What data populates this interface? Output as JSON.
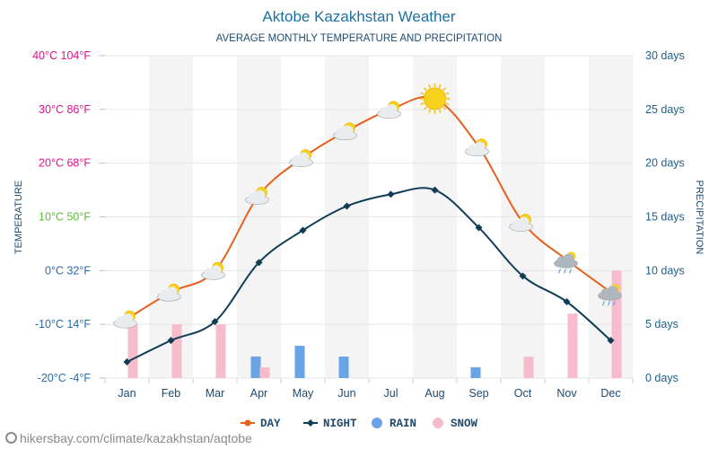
{
  "chart_data": {
    "type": "line+bar",
    "title": "Aktobe Kazakhstan Weather",
    "subtitle": "AVERAGE MONTHLY TEMPERATURE AND PRECIPITATION",
    "ylabel_left": "TEMPERATURE",
    "ylabel_right": "PRECIPITATION",
    "categories": [
      "Jan",
      "Feb",
      "Mar",
      "Apr",
      "May",
      "Jun",
      "Jul",
      "Aug",
      "Sep",
      "Oct",
      "Nov",
      "Dec"
    ],
    "temp_range_c": [
      -20,
      40
    ],
    "left_ticks": [
      {
        "c": 40,
        "label": "40°C 104°F",
        "color": "#e0148c"
      },
      {
        "c": 30,
        "label": "30°C 86°F",
        "color": "#e0148c"
      },
      {
        "c": 20,
        "label": "20°C 68°F",
        "color": "#e0148c"
      },
      {
        "c": 10,
        "label": "10°C 50°F",
        "color": "#5fb832"
      },
      {
        "c": 0,
        "label": "0°C 32°F",
        "color": "#2a6aa8"
      },
      {
        "c": -10,
        "label": "-10°C 14°F",
        "color": "#2a6aa8"
      },
      {
        "c": -20,
        "label": "-20°C -4°F",
        "color": "#2a6aa8"
      }
    ],
    "precip_range_days": [
      0,
      30
    ],
    "right_ticks": [
      {
        "v": 30,
        "label": "30 days"
      },
      {
        "v": 25,
        "label": "25 days"
      },
      {
        "v": 20,
        "label": "20 days"
      },
      {
        "v": 15,
        "label": "15 days"
      },
      {
        "v": 10,
        "label": "10 days"
      },
      {
        "v": 5,
        "label": "5 days"
      },
      {
        "v": 0,
        "label": "0 days"
      }
    ],
    "series": [
      {
        "name": "DAY",
        "color": "#e8601c",
        "values": [
          -9,
          -4,
          0,
          14,
          21,
          26,
          30,
          32,
          23,
          9,
          2,
          -4
        ]
      },
      {
        "name": "NIGHT",
        "color": "#0f3d56",
        "values": [
          -17,
          -13,
          -9.5,
          1.5,
          7.5,
          12,
          14.2,
          15,
          8,
          -1,
          -5.8,
          -13
        ]
      }
    ],
    "precip_series": [
      {
        "name": "RAIN",
        "color": "#6aa3e6",
        "values": [
          0,
          0,
          0,
          2,
          3,
          2,
          0,
          0,
          1,
          0,
          0,
          0
        ]
      },
      {
        "name": "SNOW",
        "color": "#f7bccb",
        "values": [
          5,
          5,
          5,
          1,
          0,
          0,
          0,
          0,
          0,
          2,
          6,
          10
        ]
      }
    ],
    "weather_icons": [
      "partly-cloudy",
      "partly-cloudy",
      "partly-cloudy",
      "partly-cloudy",
      "partly-cloudy",
      "partly-cloudy",
      "partly-cloudy",
      "sun",
      "partly-cloudy",
      "partly-cloudy",
      "cloud-rain",
      "cloud-rain"
    ],
    "legend": [
      {
        "name": "DAY",
        "color": "#e8601c",
        "marker": "line-dot"
      },
      {
        "name": "NIGHT",
        "color": "#0f3d56",
        "marker": "line-diamond"
      },
      {
        "name": "RAIN",
        "color": "#6aa3e6",
        "marker": "circle"
      },
      {
        "name": "SNOW",
        "color": "#f7bccb",
        "marker": "circle"
      }
    ],
    "grid": true
  },
  "footer": {
    "url": "hikersbay.com/climate/kazakhstan/aqtobe"
  },
  "colors": {
    "title": "#1f6fa3",
    "subtitle": "#1f4a6e",
    "axis_text": "#1f4a6e",
    "grid": "#e6e6e6",
    "band": "#f4f4f4"
  }
}
